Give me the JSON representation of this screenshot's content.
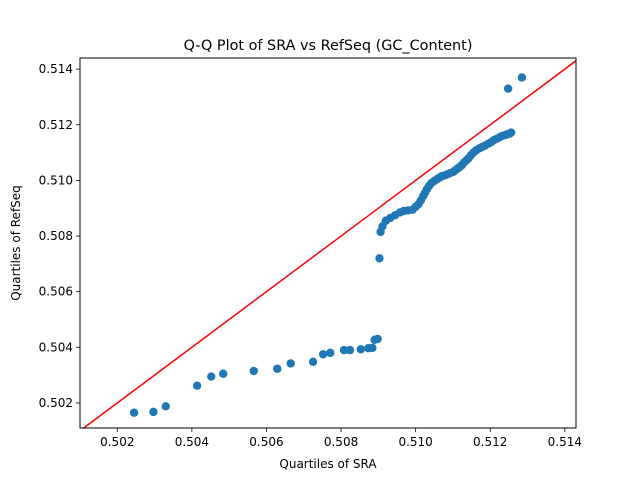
{
  "chart_data": {
    "type": "scatter",
    "title": "Q-Q Plot of SRA vs RefSeq (GC_Content)",
    "xlabel": "Quartiles of SRA",
    "ylabel": "Quartiles of RefSeq",
    "xlim": [
      0.501,
      0.5143
    ],
    "ylim": [
      0.5011,
      0.5144
    ],
    "xticks": [
      {
        "value": 0.502,
        "label": "0.502"
      },
      {
        "value": 0.504,
        "label": "0.504"
      },
      {
        "value": 0.506,
        "label": "0.506"
      },
      {
        "value": 0.508,
        "label": "0.508"
      },
      {
        "value": 0.51,
        "label": "0.510"
      },
      {
        "value": 0.512,
        "label": "0.512"
      },
      {
        "value": 0.514,
        "label": "0.514"
      }
    ],
    "yticks": [
      {
        "value": 0.502,
        "label": "0.502"
      },
      {
        "value": 0.504,
        "label": "0.504"
      },
      {
        "value": 0.506,
        "label": "0.506"
      },
      {
        "value": 0.508,
        "label": "0.508"
      },
      {
        "value": 0.51,
        "label": "0.510"
      },
      {
        "value": 0.512,
        "label": "0.512"
      },
      {
        "value": 0.514,
        "label": "0.514"
      }
    ],
    "grid": false,
    "marker_color": "#1f77b4",
    "reference_line": {
      "color": "#ff0000",
      "x": [
        0.501,
        0.5143
      ],
      "y": [
        0.501,
        0.5143
      ]
    },
    "points": [
      [
        0.50245,
        0.50165
      ],
      [
        0.50297,
        0.50168
      ],
      [
        0.5033,
        0.50188
      ],
      [
        0.50414,
        0.50262
      ],
      [
        0.50452,
        0.50295
      ],
      [
        0.50484,
        0.50305
      ],
      [
        0.50566,
        0.50315
      ],
      [
        0.50629,
        0.50323
      ],
      [
        0.50665,
        0.50342
      ],
      [
        0.50725,
        0.50348
      ],
      [
        0.50752,
        0.50375
      ],
      [
        0.50771,
        0.5038
      ],
      [
        0.50808,
        0.5039
      ],
      [
        0.50824,
        0.5039
      ],
      [
        0.50853,
        0.50393
      ],
      [
        0.50873,
        0.50397
      ],
      [
        0.50884,
        0.50398
      ],
      [
        0.5089,
        0.50427
      ],
      [
        0.50898,
        0.5043
      ],
      [
        0.50903,
        0.5072
      ],
      [
        0.50906,
        0.50815
      ],
      [
        0.50911,
        0.50835
      ],
      [
        0.5092,
        0.50855
      ],
      [
        0.50932,
        0.50865
      ],
      [
        0.50945,
        0.50875
      ],
      [
        0.50958,
        0.50885
      ],
      [
        0.50968,
        0.5089
      ],
      [
        0.5098,
        0.50892
      ],
      [
        0.50992,
        0.50895
      ],
      [
        0.51,
        0.50905
      ],
      [
        0.51008,
        0.50915
      ],
      [
        0.51014,
        0.50928
      ],
      [
        0.5102,
        0.50943
      ],
      [
        0.51025,
        0.50955
      ],
      [
        0.5103,
        0.50968
      ],
      [
        0.51036,
        0.5098
      ],
      [
        0.51042,
        0.5099
      ],
      [
        0.5105,
        0.50998
      ],
      [
        0.51058,
        0.51005
      ],
      [
        0.51064,
        0.5101
      ],
      [
        0.5107,
        0.51015
      ],
      [
        0.51078,
        0.51018
      ],
      [
        0.51085,
        0.51022
      ],
      [
        0.51092,
        0.51026
      ],
      [
        0.511,
        0.5103
      ],
      [
        0.51106,
        0.51036
      ],
      [
        0.51112,
        0.51042
      ],
      [
        0.51118,
        0.51048
      ],
      [
        0.51124,
        0.51055
      ],
      [
        0.5113,
        0.51065
      ],
      [
        0.51136,
        0.51072
      ],
      [
        0.51142,
        0.5108
      ],
      [
        0.51148,
        0.5109
      ],
      [
        0.51155,
        0.511
      ],
      [
        0.51162,
        0.51108
      ],
      [
        0.5117,
        0.51115
      ],
      [
        0.51178,
        0.5112
      ],
      [
        0.51186,
        0.51125
      ],
      [
        0.51195,
        0.51132
      ],
      [
        0.51203,
        0.51138
      ],
      [
        0.5121,
        0.51145
      ],
      [
        0.51218,
        0.5115
      ],
      [
        0.51225,
        0.51155
      ],
      [
        0.51232,
        0.5116
      ],
      [
        0.5124,
        0.51163
      ],
      [
        0.51246,
        0.51166
      ],
      [
        0.51252,
        0.51168
      ],
      [
        0.51256,
        0.51172
      ],
      [
        0.51248,
        0.5133
      ],
      [
        0.51285,
        0.5137
      ]
    ]
  }
}
